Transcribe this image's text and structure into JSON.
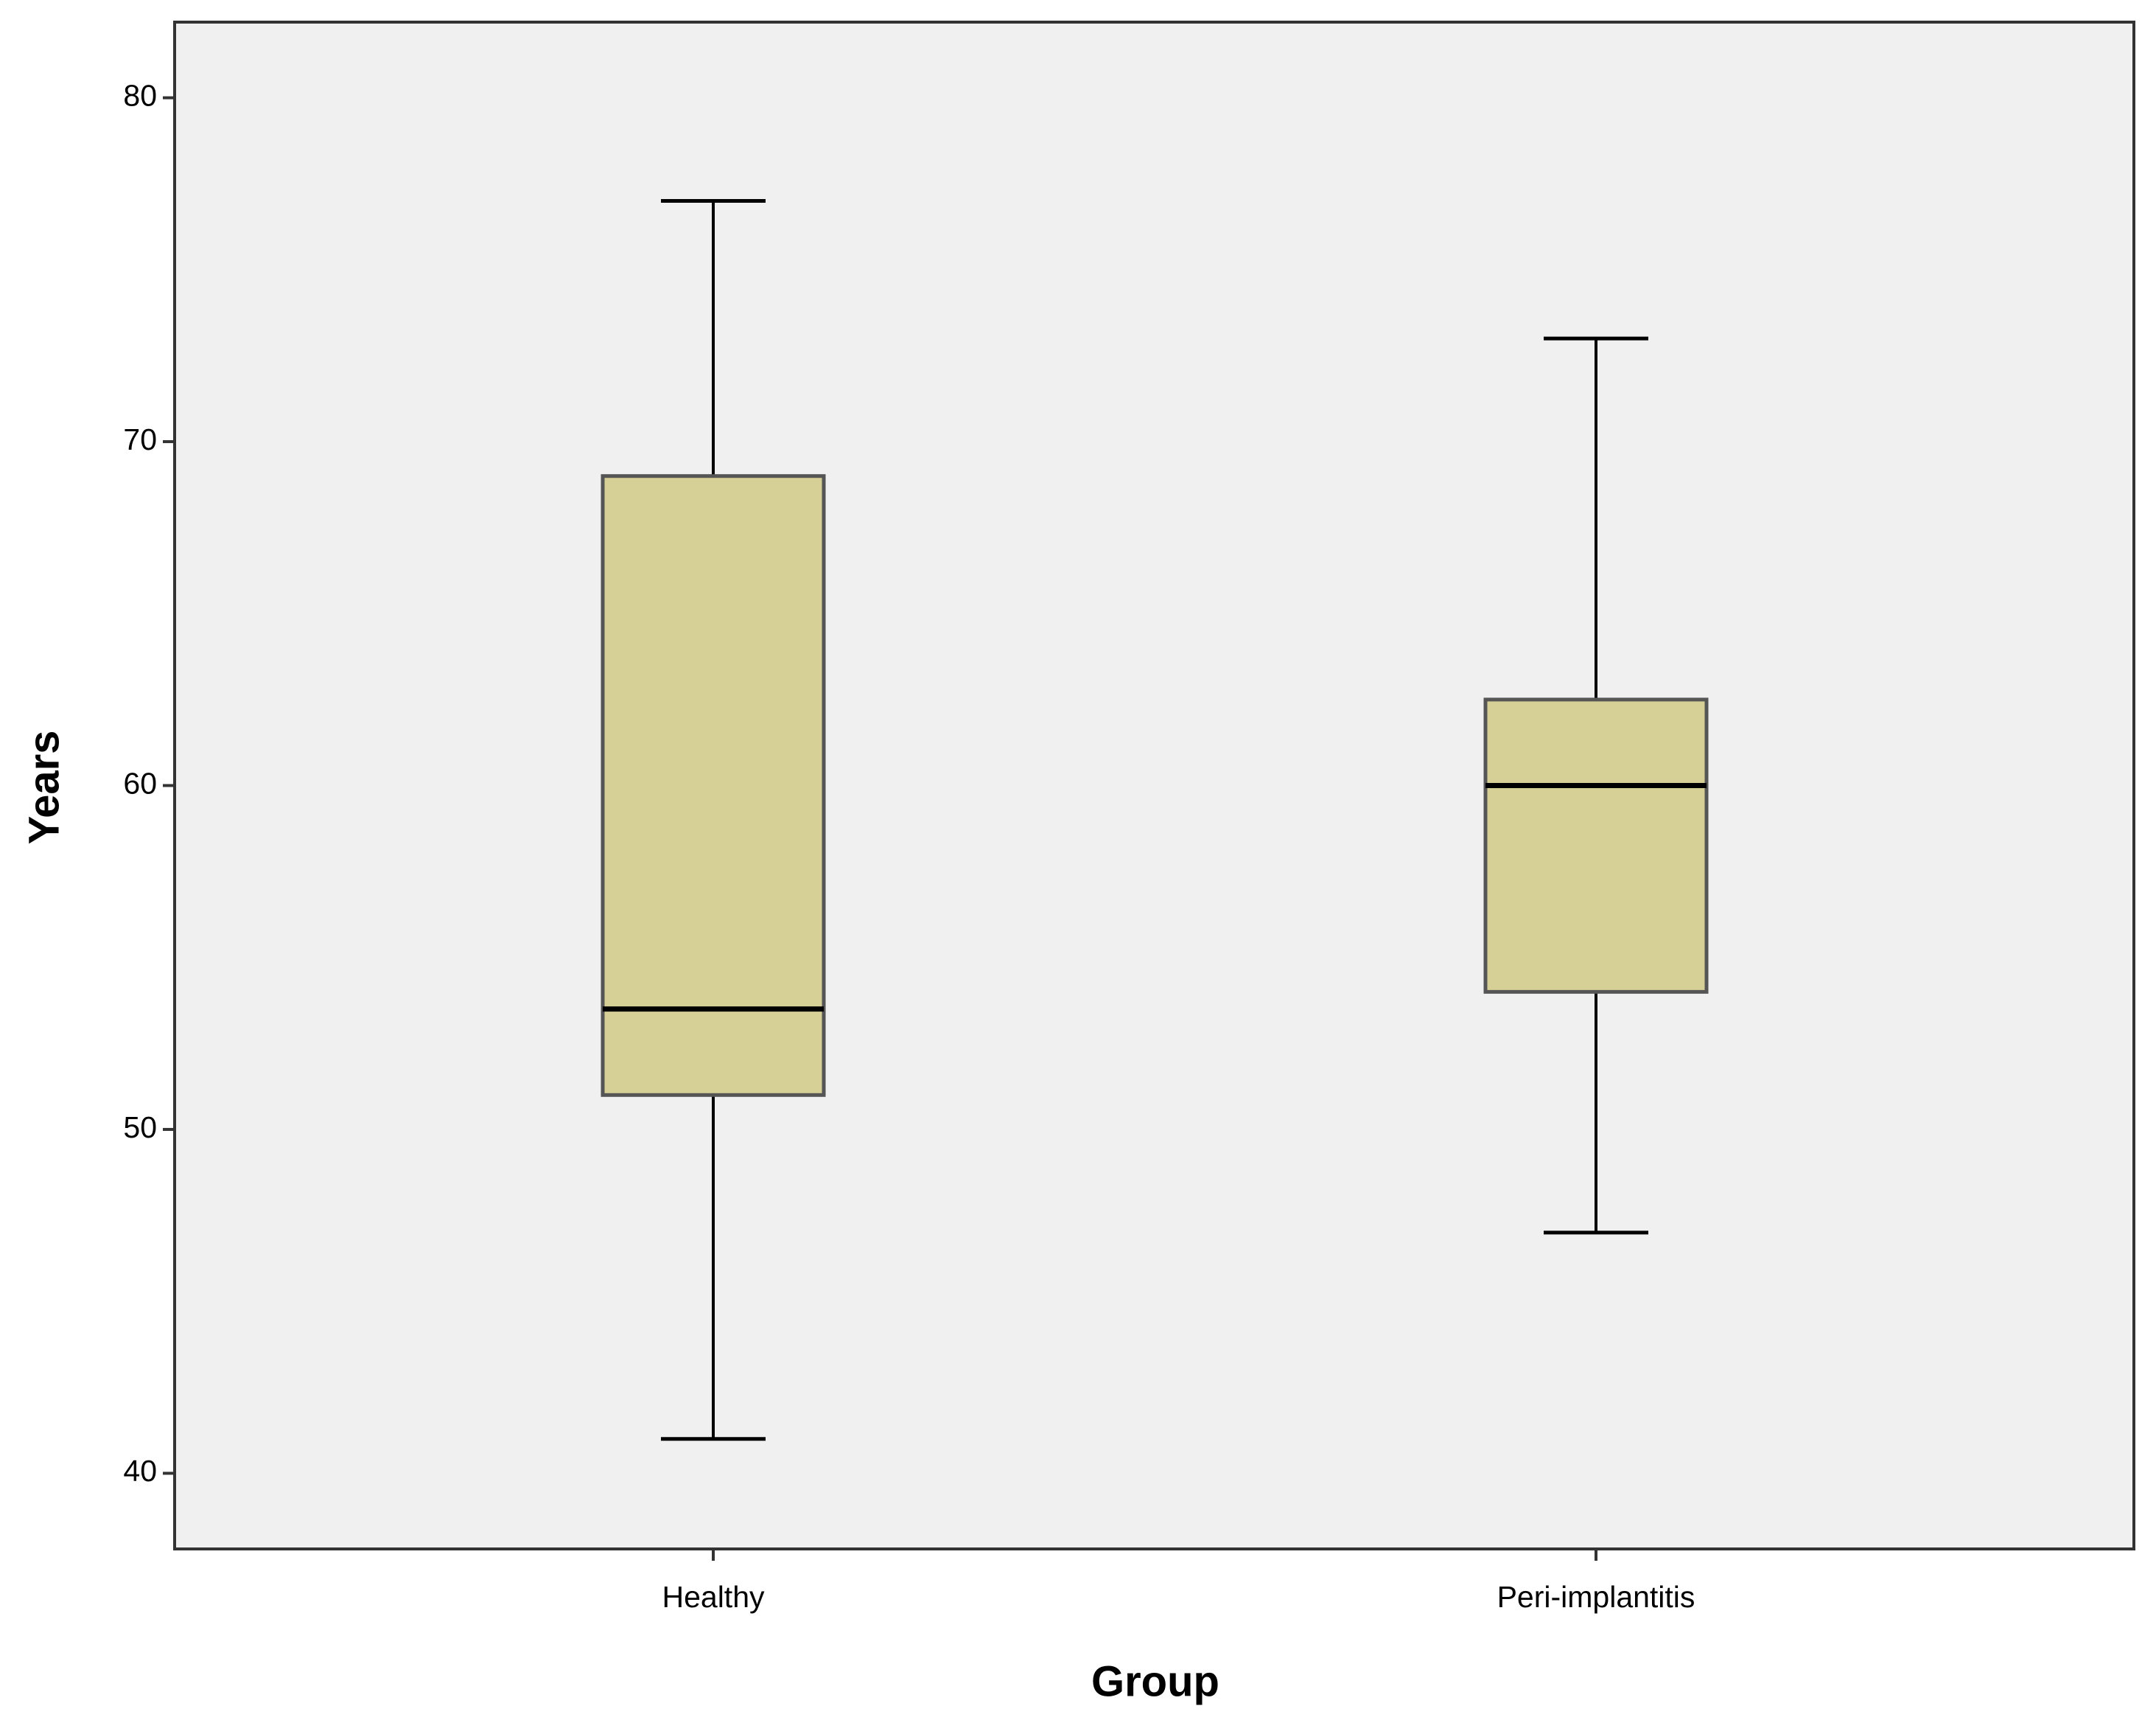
{
  "chart_data": {
    "type": "box",
    "x_label": "Group",
    "y_label": "Years",
    "categories": [
      "Healthy",
      "Peri-implantitis"
    ],
    "min": [
      41,
      47
    ],
    "q1": [
      51,
      54
    ],
    "median": [
      53.5,
      60
    ],
    "q3": [
      69,
      62.5
    ],
    "max": [
      77,
      73
    ],
    "color": "#d6d096",
    "background": "#f0f0f0",
    "ylim": [
      37.8,
      82.2
    ],
    "yticks": [
      40,
      50,
      60,
      70,
      80
    ]
  }
}
